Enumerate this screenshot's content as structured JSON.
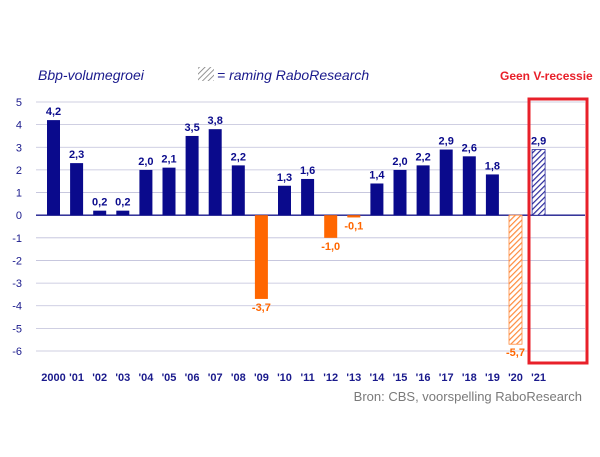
{
  "header": {
    "title": "Bbp-volumegroei",
    "legend_text": "= raming RaboResearch",
    "callout": "Geen V-recessie"
  },
  "footer": {
    "source": "Bron: CBS, voorspelling RaboResearch"
  },
  "colors": {
    "actual": "#0a0a8c",
    "negative": "#ff6600",
    "forecast_positive": "#2b2b9c",
    "forecast_negative": "#ff8a3c",
    "axis": "#1a1a8c",
    "grid": "#bfbfd9",
    "callout": "#e8202a",
    "source_text": "#7a7a7a"
  },
  "chart_data": {
    "type": "bar",
    "categories": [
      "2000",
      "'01",
      "'02",
      "'03",
      "'04",
      "'05",
      "'06",
      "'07",
      "'08",
      "'09",
      "'10",
      "'11",
      "'12",
      "'13",
      "'14",
      "'15",
      "'16",
      "'17",
      "'18",
      "'19",
      "'20",
      "'21"
    ],
    "values": [
      4.2,
      2.3,
      0.2,
      0.2,
      2.0,
      2.1,
      3.5,
      3.8,
      2.2,
      -3.7,
      1.3,
      1.6,
      -1.0,
      -0.1,
      1.4,
      2.0,
      2.2,
      2.9,
      2.6,
      1.8,
      -5.7,
      2.9
    ],
    "value_labels": [
      "4,2",
      "2,3",
      "0,2",
      "0,2",
      "2,0",
      "2,1",
      "3,5",
      "3,8",
      "2,2",
      "-3,7",
      "1,3",
      "1,6",
      "-1,0",
      "-0,1",
      "1,4",
      "2,0",
      "2,2",
      "2,9",
      "2,6",
      "1,8",
      "-5,7",
      "2,9"
    ],
    "forecast": [
      false,
      false,
      false,
      false,
      false,
      false,
      false,
      false,
      false,
      false,
      false,
      false,
      false,
      false,
      false,
      false,
      false,
      false,
      false,
      false,
      true,
      true
    ],
    "y_ticks": [
      5,
      4,
      3,
      2,
      1,
      0,
      -1,
      -2,
      -3,
      -4,
      -5,
      -6
    ],
    "ylim": [
      -6,
      5
    ],
    "grid": true,
    "xlabel": "",
    "ylabel": ""
  }
}
